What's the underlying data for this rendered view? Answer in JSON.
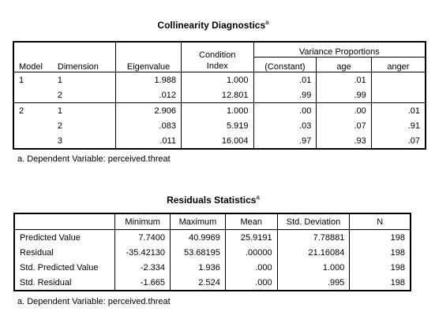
{
  "collinearity": {
    "title": "Collinearity Diagnostics",
    "title_sup": "a",
    "headers": {
      "model": "Model",
      "dimension": "Dimension",
      "eigenvalue": "Eigenvalue",
      "condition_index_1": "Condition",
      "condition_index_2": "Index",
      "variance_proportions": "Variance Proportions",
      "constant": "(Constant)",
      "age": "age",
      "anger": "anger"
    },
    "rows": [
      {
        "model": "1",
        "dimension": "1",
        "eigenvalue": "1.988",
        "condition": "1.000",
        "constant": ".01",
        "age": ".01",
        "anger": ""
      },
      {
        "model": "",
        "dimension": "2",
        "eigenvalue": ".012",
        "condition": "12.801",
        "constant": ".99",
        "age": ".99",
        "anger": ""
      },
      {
        "model": "2",
        "dimension": "1",
        "eigenvalue": "2.906",
        "condition": "1.000",
        "constant": ".00",
        "age": ".00",
        "anger": ".01"
      },
      {
        "model": "",
        "dimension": "2",
        "eigenvalue": ".083",
        "condition": "5.919",
        "constant": ".03",
        "age": ".07",
        "anger": ".91"
      },
      {
        "model": "",
        "dimension": "3",
        "eigenvalue": ".011",
        "condition": "16.004",
        "constant": ".97",
        "age": ".93",
        "anger": ".07"
      }
    ],
    "footnote": "a. Dependent Variable: perceived.threat"
  },
  "residuals": {
    "title": "Residuals Statistics",
    "title_sup": "a",
    "headers": [
      "",
      "Minimum",
      "Maximum",
      "Mean",
      "Std. Deviation",
      "N"
    ],
    "rows": [
      {
        "label": "Predicted Value",
        "min": "7.7400",
        "max": "40.9969",
        "mean": "25.9191",
        "sd": "7.78881",
        "n": "198"
      },
      {
        "label": "Residual",
        "min": "-35.42130",
        "max": "53.68195",
        "mean": ".00000",
        "sd": "21.16084",
        "n": "198"
      },
      {
        "label": "Std. Predicted Value",
        "min": "-2.334",
        "max": "1.936",
        "mean": ".000",
        "sd": "1.000",
        "n": "198"
      },
      {
        "label": "Std. Residual",
        "min": "-1.665",
        "max": "2.524",
        "mean": ".000",
        "sd": ".995",
        "n": "198"
      }
    ],
    "footnote": "a. Dependent Variable: perceived.threat"
  }
}
